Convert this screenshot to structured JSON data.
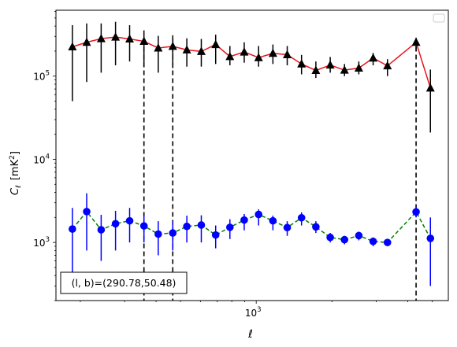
{
  "chart_data": {
    "type": "scatter",
    "xscale": "log",
    "yscale": "log",
    "xlim": [
      160,
      5800
    ],
    "ylim": [
      200,
      620000
    ],
    "xlabel": "ℓ",
    "ylabel_main": "C",
    "ylabel_sub": "ℓ",
    "ylabel_unit": "[mK",
    "ylabel_unit_sup": "2",
    "ylabel_unit_end": "]",
    "xticks": [
      {
        "value": 1000,
        "base": "10",
        "exp": "3"
      }
    ],
    "yticks": [
      {
        "value": 1000,
        "base": "10",
        "exp": "3"
      },
      {
        "value": 10000,
        "base": "10",
        "exp": "4"
      },
      {
        "value": 100000,
        "base": "10",
        "exp": "5"
      }
    ],
    "x": [
      186,
      212,
      242,
      276,
      314,
      358,
      408,
      466,
      530,
      605,
      690,
      786,
      896,
      1022,
      1165,
      1328,
      1514,
      1726,
      1968,
      2243,
      2557,
      2915,
      3323,
      3788,
      4318,
      4923
    ],
    "vlines": [
      358,
      466,
      4318
    ],
    "legend": {
      "placement": "top-right",
      "entries": []
    },
    "annotation": "(l, b)=(290.78,50.48)",
    "series": [
      {
        "marker": "triangle",
        "marker_color": "#000000",
        "line_color": "#e8141a",
        "line_style": "solid",
        "values": [
          225000,
          255000,
          282000,
          295000,
          280000,
          262000,
          218000,
          228000,
          207000,
          198000,
          240000,
          172000,
          195000,
          167000,
          188000,
          181000,
          140000,
          117000,
          136000,
          118000,
          125000,
          165000,
          133000,
          255000,
          72000
        ],
        "err_low": [
          175000,
          170000,
          172000,
          160000,
          130000,
          132000,
          108000,
          103000,
          77000,
          68000,
          100000,
          37000,
          50000,
          37000,
          48000,
          46000,
          35000,
          22000,
          26000,
          18000,
          20000,
          30000,
          33000,
          55000,
          51000
        ],
        "err_high": [
          185000,
          175000,
          148000,
          155000,
          130000,
          93000,
          87000,
          82000,
          78000,
          82000,
          75000,
          58000,
          60000,
          63000,
          52000,
          49000,
          40000,
          33000,
          34000,
          22000,
          25000,
          25000,
          27000,
          35000,
          48000
        ],
        "x_index": [
          0,
          1,
          2,
          3,
          4,
          5,
          6,
          7,
          8,
          9,
          10,
          11,
          12,
          13,
          14,
          15,
          16,
          17,
          18,
          19,
          20,
          21,
          22,
          24,
          25
        ]
      },
      {
        "marker": "circle",
        "marker_color": "#0000ff",
        "line_color": "#008000",
        "line_style": "dashed",
        "values": [
          1450,
          2350,
          1420,
          1680,
          1820,
          1580,
          1260,
          1300,
          1560,
          1620,
          1230,
          1520,
          1860,
          2170,
          1820,
          1510,
          1980,
          1540,
          1150,
          1080,
          1210,
          1030,
          1000,
          2330,
          1120
        ],
        "err_low": [
          1050,
          1550,
          820,
          880,
          820,
          580,
          560,
          500,
          560,
          620,
          380,
          420,
          460,
          570,
          420,
          310,
          380,
          240,
          150,
          130,
          150,
          130,
          100,
          330,
          820
        ],
        "err_high": [
          1150,
          1550,
          730,
          720,
          780,
          520,
          540,
          500,
          540,
          500,
          370,
          380,
          340,
          330,
          280,
          290,
          320,
          260,
          150,
          120,
          140,
          120,
          100,
          370,
          880
        ],
        "x_index": [
          0,
          1,
          2,
          3,
          4,
          5,
          6,
          7,
          8,
          9,
          10,
          11,
          12,
          13,
          14,
          15,
          16,
          17,
          18,
          19,
          20,
          21,
          22,
          24,
          25
        ]
      }
    ]
  }
}
